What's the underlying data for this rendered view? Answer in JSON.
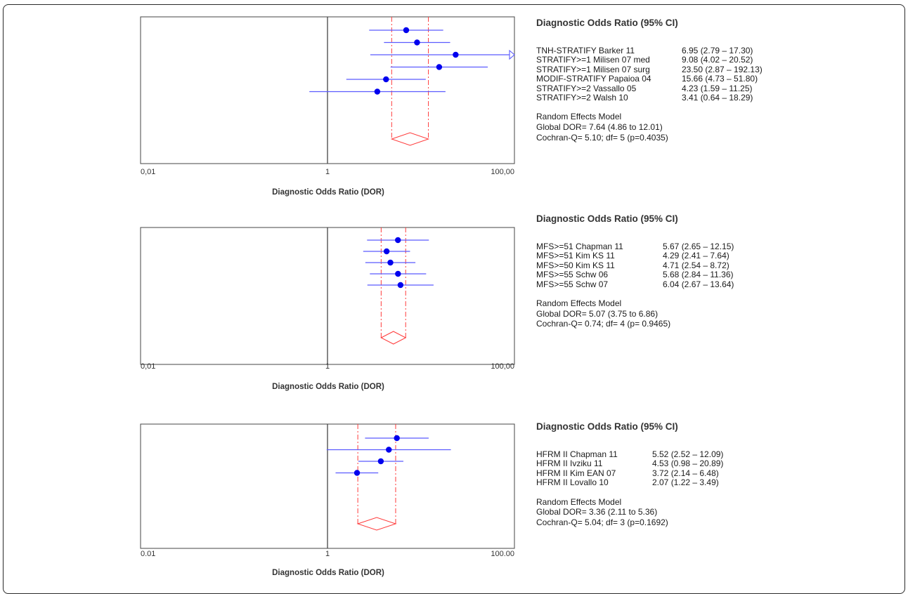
{
  "axis_tick_labels": [
    "0,01",
    "1",
    "100,00"
  ],
  "x_axis_label": "Diagnostic Odds Ratio (DOR)",
  "panel_title": "Diagnostic Odds Ratio (95% CI)",
  "colors": {
    "ci_line": "#5b5bff",
    "point": "#0000ee",
    "pooled": "#ff3b3b",
    "frame": "#444444"
  },
  "chart_data": [
    {
      "type": "forest",
      "xscale": "log",
      "xlim": [
        0.01,
        100
      ],
      "reference_line": 1,
      "x_tick_labels": [
        "0,01",
        "1",
        "100,00"
      ],
      "xlabel": "Diagnostic Odds Ratio (DOR)",
      "title": "Diagnostic Odds Ratio (95% CI)",
      "studies": [
        {
          "name": "TNH-STRATIFY Barker 11",
          "value_text": "6.95 (2.79 – 17.30)",
          "dor": 6.95,
          "lower": 2.79,
          "upper": 17.3
        },
        {
          "name": "STRATIFY>=1 Milisen 07 med",
          "value_text": "9.08 (4.02 – 20.52)",
          "dor": 9.08,
          "lower": 4.02,
          "upper": 20.52
        },
        {
          "name": "STRATIFY>=1 Milisen 07 surg",
          "value_text": "23.50 (2.87 – 192.13)",
          "dor": 23.5,
          "lower": 2.87,
          "upper": 192.13
        },
        {
          "name": "MODIF-STRATIFY Papaioa 04",
          "value_text": "15.66 (4.73 – 51.80)",
          "dor": 15.66,
          "lower": 4.73,
          "upper": 51.8
        },
        {
          "name": "STRATIFY>=2 Vassallo 05",
          "value_text": "4.23 (1.59 – 11.25)",
          "dor": 4.23,
          "lower": 1.59,
          "upper": 11.25
        },
        {
          "name": "STRATIFY>=2 Walsh 10",
          "value_text": "3.41 (0.64 – 18.29)",
          "dor": 3.41,
          "lower": 0.64,
          "upper": 18.29
        }
      ],
      "pooled": {
        "dor": 7.64,
        "lower": 4.86,
        "upper": 12.01
      },
      "model_lines": [
        "Random Effects Model",
        "Global DOR= 7.64 (4.86 to 12.01)",
        "Cochran-Q= 5.10; df= 5 (p=0.4035)"
      ]
    },
    {
      "type": "forest",
      "xscale": "log",
      "xlim": [
        0.01,
        100
      ],
      "reference_line": 1,
      "x_tick_labels": [
        "0,01",
        "1",
        "100,00"
      ],
      "xlabel": "Diagnostic Odds Ratio (DOR)",
      "title": "Diagnostic Odds Ratio (95% CI)",
      "studies": [
        {
          "name": "MFS>=51 Chapman 11",
          "value_text": "5.67 (2.65 – 12.15)",
          "dor": 5.67,
          "lower": 2.65,
          "upper": 12.15
        },
        {
          "name": "MFS>=51 Kim KS 11",
          "value_text": "4.29 (2.41 – 7.64)",
          "dor": 4.29,
          "lower": 2.41,
          "upper": 7.64
        },
        {
          "name": "MFS>=50 Kim KS 11",
          "value_text": "4.71 (2.54 – 8.72)",
          "dor": 4.71,
          "lower": 2.54,
          "upper": 8.72
        },
        {
          "name": "MFS>=55 Schw 06",
          "value_text": "5.68 (2.84 – 11.36)",
          "dor": 5.68,
          "lower": 2.84,
          "upper": 11.36
        },
        {
          "name": "MFS>=55 Schw 07",
          "value_text": "6.04 (2.67 – 13.64)",
          "dor": 6.04,
          "lower": 2.67,
          "upper": 13.64
        }
      ],
      "pooled": {
        "dor": 5.07,
        "lower": 3.75,
        "upper": 6.86
      },
      "model_lines": [
        "Random Effects Model",
        "Global DOR= 5.07 (3.75 to 6.86)",
        "Cochran-Q= 0.74; df= 4 (p= 0.9465)"
      ]
    },
    {
      "type": "forest",
      "xscale": "log",
      "xlim": [
        0.01,
        100
      ],
      "reference_line": 1,
      "x_tick_labels": [
        "0.01",
        "1",
        "100.00"
      ],
      "xlabel": "Diagnostic Odds Ratio (DOR)",
      "title": "Diagnostic Odds Ratio (95% CI)",
      "studies": [
        {
          "name": "HFRM II Chapman 11",
          "value_text": "5.52 (2.52 – 12.09)",
          "dor": 5.52,
          "lower": 2.52,
          "upper": 12.09
        },
        {
          "name": "HFRM II Ivziku 11",
          "value_text": "4.53 (0.98 – 20.89)",
          "dor": 4.53,
          "lower": 0.98,
          "upper": 20.89
        },
        {
          "name": "HFRM II Kim EAN 07",
          "value_text": "3.72 (2.14 – 6.48)",
          "dor": 3.72,
          "lower": 2.14,
          "upper": 6.48
        },
        {
          "name": "HFRM II Lovallo 10",
          "value_text": "2.07 (1.22 – 3.49)",
          "dor": 2.07,
          "lower": 1.22,
          "upper": 3.49
        }
      ],
      "pooled": {
        "dor": 3.36,
        "lower": 2.11,
        "upper": 5.36
      },
      "model_lines": [
        "Random Effects Model",
        "Global DOR= 3.36 (2.11 to 5.36)",
        "Cochran-Q= 5.04; df= 3 (p=0.1692)"
      ]
    }
  ]
}
